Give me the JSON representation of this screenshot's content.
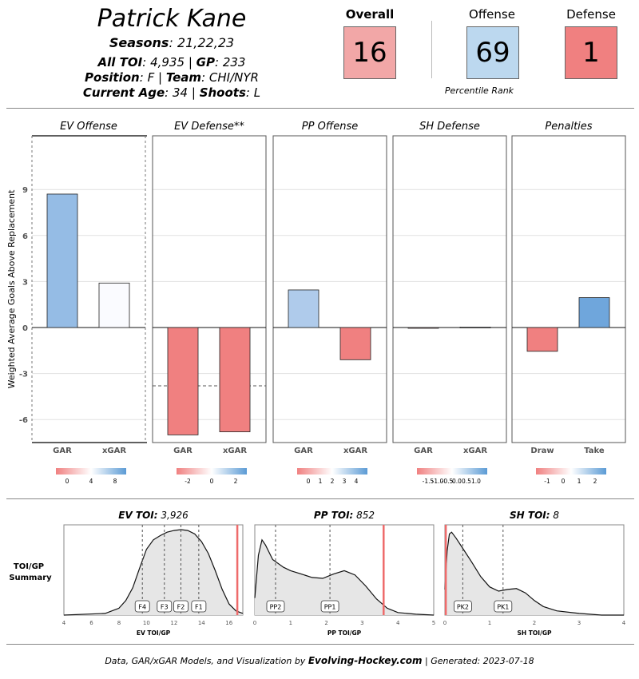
{
  "header": {
    "player_name": "Patrick Kane",
    "seasons_label": "Seasons",
    "seasons": "21,22,23",
    "all_toi_label": "All TOI",
    "all_toi": "4,935",
    "gp_label": "GP",
    "gp": "233",
    "position_label": "Position",
    "position": "F",
    "team_label": "Team",
    "team": "CHI/NYR",
    "age_label": "Current Age",
    "age": "34",
    "shoots_label": "Shoots",
    "shoots": "L",
    "separator": "|",
    "colon": ":"
  },
  "ranks": {
    "overall_label": "Overall",
    "overall": "16",
    "offense_label": "Offense",
    "offense": "69",
    "defense_label": "Defense",
    "defense": "1",
    "percentile_label": "Percentile Rank",
    "colors": {
      "overall": "#f2a7a7",
      "offense": "#bcd8ef",
      "defense": "#f08080"
    }
  },
  "chart_data": [
    {
      "type": "bar",
      "ylabel": "Weighted Average Goals Above Replacement",
      "ylim": [
        -7.5,
        12.5
      ],
      "yticks": [
        "9",
        "6",
        "3",
        "0",
        "-3",
        "-6"
      ],
      "panels": [
        {
          "title": "EV Offense",
          "categories": [
            "GAR",
            "xGAR"
          ],
          "values": [
            8.7,
            2.9
          ],
          "colors": [
            "#95bce5",
            "#fafbff"
          ],
          "legend": {
            "ticks": [
              "0",
              "4",
              "8"
            ],
            "low": "#f08080",
            "high": "#5b9bd5"
          }
        },
        {
          "title": "EV Defense**",
          "categories": [
            "GAR",
            "xGAR"
          ],
          "values": [
            -7.0,
            -6.8
          ],
          "colors": [
            "#f08080",
            "#f08080"
          ],
          "reference_line": -3.8,
          "legend": {
            "ticks": [
              "-2",
              "0",
              "2"
            ],
            "low": "#f08080",
            "high": "#5b9bd5"
          }
        },
        {
          "title": "PP Offense",
          "categories": [
            "GAR",
            "xGAR"
          ],
          "values": [
            2.45,
            -2.1
          ],
          "colors": [
            "#afcbeb",
            "#f08080"
          ],
          "legend": {
            "ticks": [
              "0",
              "1",
              "2",
              "3",
              "4"
            ],
            "low": "#f08080",
            "high": "#5b9bd5"
          }
        },
        {
          "title": "SH Defense",
          "categories": [
            "GAR",
            "xGAR"
          ],
          "values": [
            -0.05,
            0.03
          ],
          "colors": [
            "#f6b7b7",
            "#e9f1fa"
          ],
          "legend": {
            "ticks": [
              "-1.5",
              "-1.0",
              "-0.5",
              "0.0",
              "0.5",
              "1.0"
            ],
            "low": "#f08080",
            "high": "#5b9bd5"
          }
        },
        {
          "title": "Penalties",
          "categories": [
            "Draw",
            "Take"
          ],
          "values": [
            -1.55,
            1.95
          ],
          "colors": [
            "#f08080",
            "#6fa6dc"
          ],
          "legend": {
            "ticks": [
              "-1",
              "0",
              "1",
              "2"
            ],
            "low": "#f08080",
            "high": "#5b9bd5"
          }
        }
      ]
    },
    {
      "type": "area",
      "row_label": [
        "TOI/GP",
        "Summary"
      ],
      "panels": [
        {
          "title_label": "EV TOI",
          "title_value": "3,926",
          "xlabel": "EV TOI/GP",
          "xlim": [
            4,
            17
          ],
          "xticks": [
            4,
            6,
            8,
            10,
            12,
            14,
            16
          ],
          "player_value": 16.6,
          "markers": [
            {
              "label": "F4",
              "x": 9.7
            },
            {
              "label": "F3",
              "x": 11.3
            },
            {
              "label": "F2",
              "x": 12.5
            },
            {
              "label": "F1",
              "x": 13.8
            }
          ],
          "density_x": [
            4,
            7,
            8,
            8.5,
            9,
            9.5,
            10,
            10.5,
            11,
            11.5,
            12,
            12.5,
            13,
            13.5,
            14,
            14.5,
            15,
            15.5,
            16,
            16.5,
            17
          ],
          "density_y": [
            0,
            0.02,
            0.08,
            0.17,
            0.32,
            0.55,
            0.77,
            0.88,
            0.93,
            0.97,
            0.99,
            1.0,
            0.99,
            0.95,
            0.86,
            0.72,
            0.52,
            0.3,
            0.13,
            0.05,
            0.02
          ]
        },
        {
          "title_label": "PP TOI",
          "title_value": "852",
          "xlabel": "PP TOI/GP",
          "xlim": [
            0,
            5
          ],
          "xticks": [
            0,
            1,
            2,
            3,
            4,
            5
          ],
          "player_value": 3.6,
          "markers": [
            {
              "label": "PP2",
              "x": 0.58
            },
            {
              "label": "PP1",
              "x": 2.1
            }
          ],
          "density_x": [
            0,
            0.1,
            0.2,
            0.3,
            0.5,
            0.8,
            1.0,
            1.3,
            1.6,
            1.9,
            2.2,
            2.5,
            2.8,
            3.1,
            3.4,
            3.7,
            4.0,
            4.5,
            5.0
          ],
          "density_y": [
            0.2,
            0.7,
            0.88,
            0.82,
            0.65,
            0.56,
            0.52,
            0.48,
            0.44,
            0.43,
            0.48,
            0.52,
            0.47,
            0.34,
            0.19,
            0.08,
            0.03,
            0.01,
            0.0
          ],
          "fill_color": "#e6e6e6"
        },
        {
          "title_label": "SH TOI",
          "title_value": "8",
          "xlabel": "SH TOI/GP",
          "xlim": [
            0,
            4
          ],
          "xticks": [
            0,
            1,
            2,
            3,
            4
          ],
          "player_value": 0.02,
          "markers": [
            {
              "label": "PK2",
              "x": 0.4
            },
            {
              "label": "PK1",
              "x": 1.3
            }
          ],
          "density_x": [
            0,
            0.05,
            0.1,
            0.15,
            0.25,
            0.4,
            0.6,
            0.8,
            1.0,
            1.2,
            1.4,
            1.6,
            1.8,
            2.0,
            2.2,
            2.5,
            3.0,
            3.5,
            4.0
          ],
          "density_y": [
            0.3,
            0.75,
            0.95,
            0.97,
            0.9,
            0.78,
            0.62,
            0.45,
            0.33,
            0.28,
            0.3,
            0.31,
            0.26,
            0.17,
            0.1,
            0.05,
            0.02,
            0.0,
            0.0
          ]
        }
      ]
    }
  ],
  "footer": {
    "prefix": "Data, GAR/xGAR Models, and Visualization by ",
    "brand": "Evolving-Hockey.com",
    "suffix": " | Generated: 2023-07-18"
  }
}
